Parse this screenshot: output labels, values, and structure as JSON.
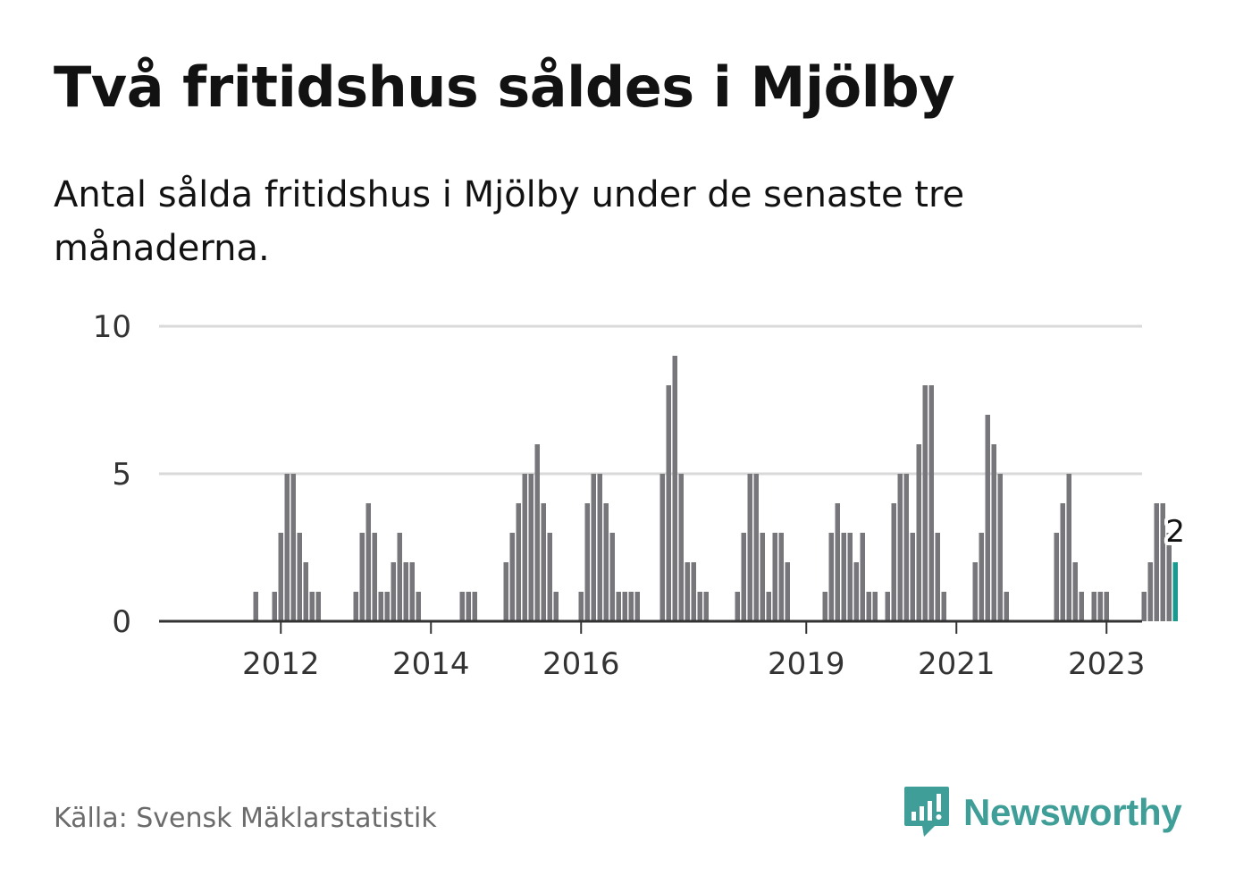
{
  "title": "Två fritidshus såldes i Mjölby",
  "subtitle": "Antal sålda fritidshus i Mjölby under de senaste tre månaderna.",
  "source": "Källa: Svensk Mäklarstatistik",
  "brand": {
    "name": "Newsworthy",
    "color": "#3f9e98"
  },
  "colors": {
    "bar": "#77767a",
    "highlight": "#1a9a8e",
    "grid": "#d9d9d9",
    "axis": "#333333"
  },
  "chart_data": {
    "type": "bar",
    "ylim": [
      0,
      10
    ],
    "y_ticks": [
      0,
      5,
      10
    ],
    "x_ticks": [
      "2012",
      "2014",
      "2016",
      "2019",
      "2021",
      "2023"
    ],
    "grid": true,
    "highlight_label": "2",
    "series": [
      {
        "values": [
          0,
          0,
          0,
          0,
          0,
          0,
          0,
          0,
          1,
          0,
          0,
          1,
          3,
          5,
          5,
          3,
          2,
          1,
          1,
          0,
          0,
          0,
          0,
          0,
          1,
          3,
          4,
          3,
          1,
          1,
          2,
          3,
          2,
          2,
          1,
          0,
          0,
          0,
          0,
          0,
          0,
          1,
          1,
          1,
          0,
          0,
          0,
          0,
          2,
          3,
          4,
          5,
          5,
          6,
          4,
          3,
          1,
          0,
          0,
          0,
          1,
          4,
          5,
          5,
          4,
          3,
          1,
          1,
          1,
          1,
          0,
          0,
          0,
          5,
          8,
          9,
          5,
          2,
          2,
          1,
          1,
          0,
          0,
          0,
          0,
          1,
          3,
          5,
          5,
          3,
          1,
          3,
          3,
          2,
          0,
          0,
          0,
          0,
          0,
          1,
          3,
          4,
          3,
          3,
          2,
          3,
          1,
          1,
          0,
          1,
          4,
          5,
          5,
          3,
          6,
          8,
          8,
          3,
          1,
          0,
          0,
          0,
          0,
          2,
          3,
          7,
          6,
          5,
          1,
          0,
          0,
          0,
          0,
          0,
          0,
          0,
          3,
          4,
          5,
          2,
          1,
          0,
          1,
          1,
          1,
          0,
          0,
          0,
          0,
          0,
          1,
          2,
          4,
          4,
          3,
          2
        ]
      }
    ]
  }
}
